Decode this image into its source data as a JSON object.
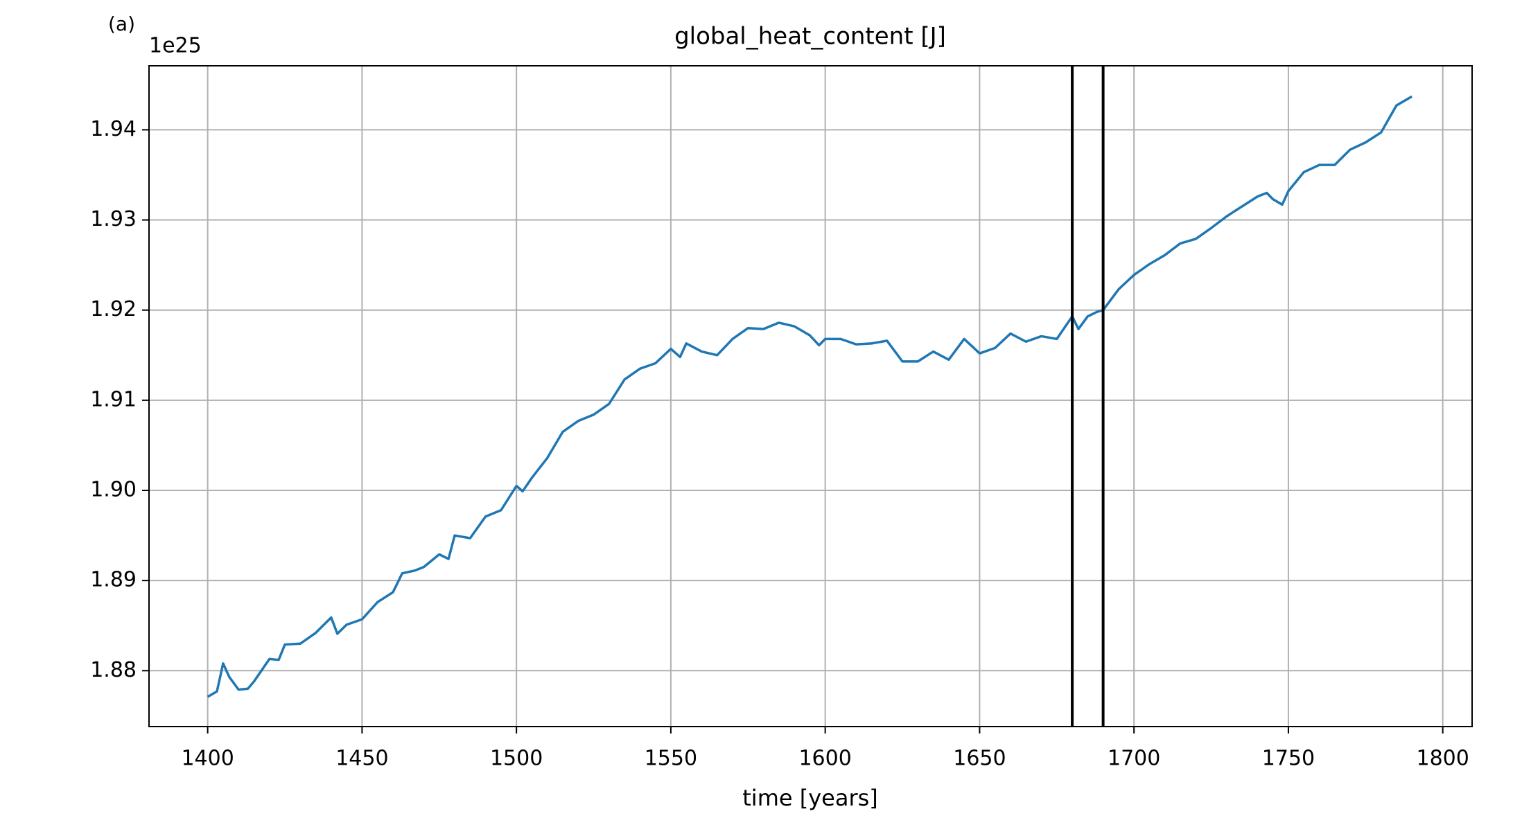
{
  "chart_data": {
    "type": "line",
    "title": "global_heat_content [J]",
    "panel_label": "(a)",
    "y_offset_label": "1e25",
    "xlabel": "time [years]",
    "x": [
      1400,
      1403,
      1405,
      1407,
      1410,
      1413,
      1415,
      1420,
      1423,
      1425,
      1430,
      1435,
      1440,
      1442,
      1445,
      1450,
      1455,
      1460,
      1463,
      1467,
      1470,
      1475,
      1478,
      1480,
      1485,
      1490,
      1495,
      1500,
      1502,
      1505,
      1510,
      1515,
      1520,
      1525,
      1530,
      1535,
      1540,
      1545,
      1550,
      1553,
      1555,
      1560,
      1565,
      1570,
      1575,
      1580,
      1585,
      1590,
      1595,
      1598,
      1600,
      1605,
      1610,
      1615,
      1620,
      1625,
      1630,
      1635,
      1640,
      1645,
      1650,
      1655,
      1660,
      1665,
      1670,
      1675,
      1680,
      1682,
      1685,
      1688,
      1690,
      1695,
      1700,
      1705,
      1710,
      1715,
      1720,
      1725,
      1730,
      1735,
      1740,
      1743,
      1745,
      1748,
      1750,
      1755,
      1760,
      1765,
      1770,
      1775,
      1780,
      1785,
      1790
    ],
    "values": [
      1.8771,
      1.8777,
      1.8808,
      1.8793,
      1.8779,
      1.878,
      1.8788,
      1.8813,
      1.8812,
      1.8829,
      1.883,
      1.8842,
      1.8859,
      1.8841,
      1.8851,
      1.8857,
      1.8876,
      1.8887,
      1.8908,
      1.8911,
      1.8915,
      1.8929,
      1.8924,
      1.895,
      1.8947,
      1.8971,
      1.8978,
      1.9005,
      1.8999,
      1.9014,
      1.9036,
      1.9065,
      1.9077,
      1.9084,
      1.9096,
      1.9123,
      1.9135,
      1.9141,
      1.9157,
      1.9148,
      1.9163,
      1.9154,
      1.915,
      1.9168,
      1.918,
      1.9179,
      1.9186,
      1.9182,
      1.9172,
      1.9161,
      1.9168,
      1.9168,
      1.9162,
      1.9163,
      1.9166,
      1.9143,
      1.9143,
      1.9154,
      1.9145,
      1.9168,
      1.9152,
      1.9158,
      1.9174,
      1.9165,
      1.9171,
      1.9168,
      1.9193,
      1.9179,
      1.9193,
      1.9198,
      1.92,
      1.9223,
      1.9239,
      1.9251,
      1.9261,
      1.9274,
      1.9279,
      1.9291,
      1.9304,
      1.9315,
      1.9326,
      1.933,
      1.9323,
      1.9317,
      1.9332,
      1.9353,
      1.9361,
      1.9361,
      1.9378,
      1.9386,
      1.9397,
      1.9427,
      1.9437
    ],
    "color": "#1f77b4",
    "vlines": [
      1680,
      1690
    ],
    "vline_color": "#000000",
    "xlim": [
      1381,
      1809.5
    ],
    "ylim": [
      1.8738,
      1.9471
    ],
    "xticks": [
      1400,
      1450,
      1500,
      1550,
      1600,
      1650,
      1700,
      1750,
      1800
    ],
    "yticks": [
      {
        "value": 1.88,
        "label": "1.88"
      },
      {
        "value": 1.89,
        "label": "1.89"
      },
      {
        "value": 1.9,
        "label": "1.90"
      },
      {
        "value": 1.91,
        "label": "1.91"
      },
      {
        "value": 1.92,
        "label": "1.92"
      },
      {
        "value": 1.93,
        "label": "1.93"
      },
      {
        "value": 1.94,
        "label": "1.94"
      }
    ],
    "grid": true
  }
}
